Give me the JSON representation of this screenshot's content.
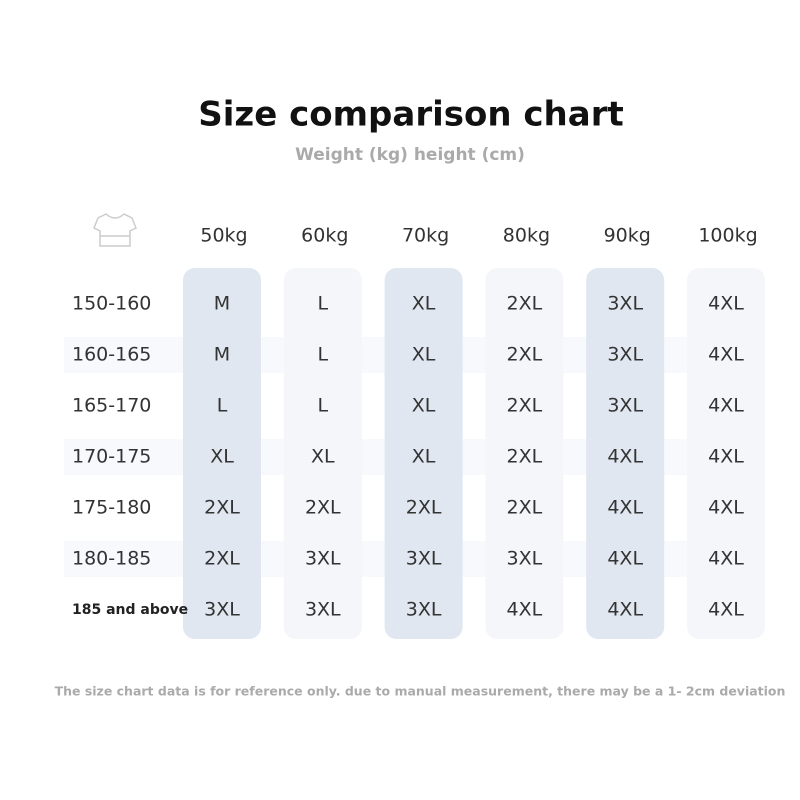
{
  "header": {
    "title": "Size comparison chart",
    "subtitle": "Weight (kg) height (cm)"
  },
  "table": {
    "columns": [
      "50kg",
      "60kg",
      "70kg",
      "80kg",
      "90kg",
      "100kg"
    ],
    "rows": [
      {
        "label": "150-160",
        "sizes": [
          "M",
          "L",
          "XL",
          "2XL",
          "3XL",
          "4XL"
        ]
      },
      {
        "label": "160-165",
        "sizes": [
          "M",
          "L",
          "XL",
          "2XL",
          "3XL",
          "4XL"
        ]
      },
      {
        "label": "165-170",
        "sizes": [
          "L",
          "L",
          "XL",
          "2XL",
          "3XL",
          "4XL"
        ]
      },
      {
        "label": "170-175",
        "sizes": [
          "XL",
          "XL",
          "XL",
          "2XL",
          "4XL",
          "4XL"
        ]
      },
      {
        "label": "175-180",
        "sizes": [
          "2XL",
          "2XL",
          "2XL",
          "2XL",
          "4XL",
          "4XL"
        ]
      },
      {
        "label": "180-185",
        "sizes": [
          "2XL",
          "3XL",
          "3XL",
          "3XL",
          "4XL",
          "4XL"
        ]
      },
      {
        "label": "185 and above",
        "sizes": [
          "3XL",
          "3XL",
          "3XL",
          "4XL",
          "4XL",
          "4XL"
        ]
      }
    ]
  },
  "footnote": "The size chart data is for reference only. due to manual measurement, there may be a 1- 2cm deviation"
}
